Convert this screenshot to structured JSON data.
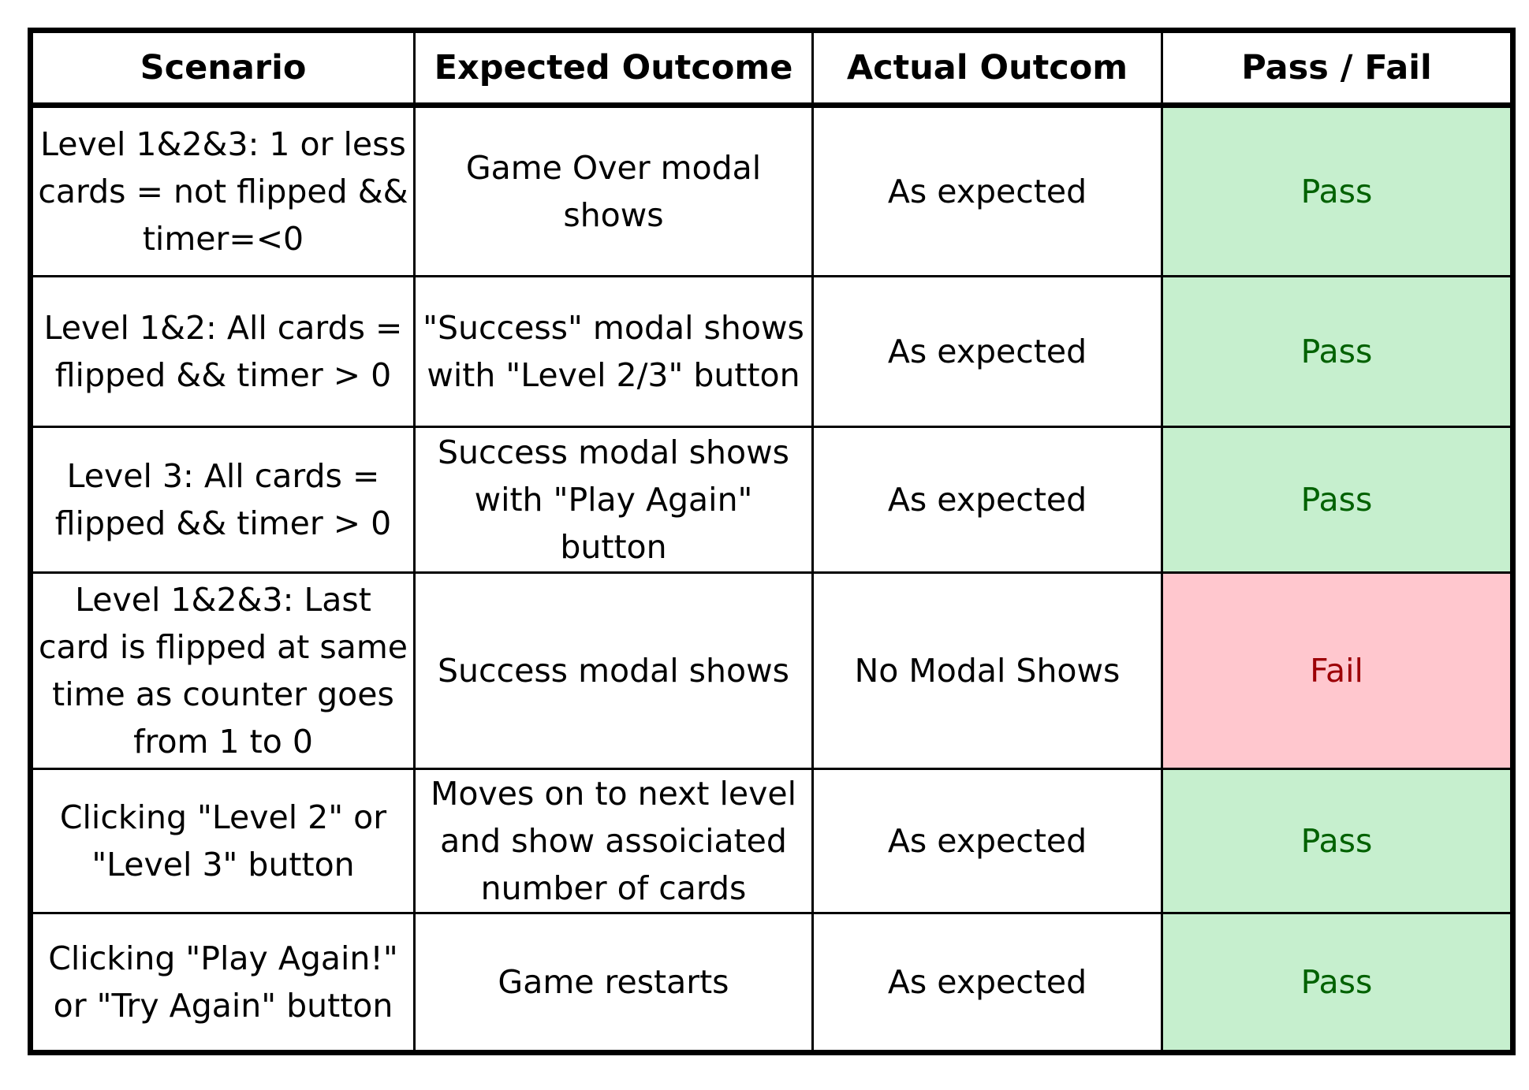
{
  "table": {
    "headers": [
      "Scenario",
      "Expected Outcome",
      "Actual Outcom",
      "Pass / Fail"
    ],
    "rows": [
      {
        "scenario": "Level 1&2&3: 1 or less cards = not flipped && timer=<0",
        "expected": "Game Over modal shows",
        "actual": "As expected",
        "result": "Pass",
        "status_color": "#c6efce"
      },
      {
        "scenario": "Level 1&2: All cards = flipped && timer > 0",
        "expected": "\"Success\" modal shows with \"Level 2/3\" button",
        "actual": "As expected",
        "result": "Pass",
        "status_color": "#c6efce"
      },
      {
        "scenario": "Level 3: All cards = flipped && timer > 0",
        "expected": "Success modal shows with \"Play Again\" button",
        "actual": "As expected",
        "result": "Pass",
        "status_color": "#c6efce"
      },
      {
        "scenario": "Level 1&2&3: Last card is flipped at same time as counter goes from 1 to 0",
        "expected": "Success modal shows",
        "actual": "No Modal Shows",
        "result": "Fail",
        "status_color": "#ffc7ce"
      },
      {
        "scenario": "Clicking \"Level 2\" or \"Level 3\" button",
        "expected": "Moves on to next level and show assoiciated number of cards",
        "actual": "As expected",
        "result": "Pass",
        "status_color": "#c6efce"
      },
      {
        "scenario": "Clicking \"Play Again!\" or \"Try Again\" button",
        "expected": "Game restarts",
        "actual": "As expected",
        "result": "Pass",
        "status_color": "#c6efce"
      }
    ]
  }
}
